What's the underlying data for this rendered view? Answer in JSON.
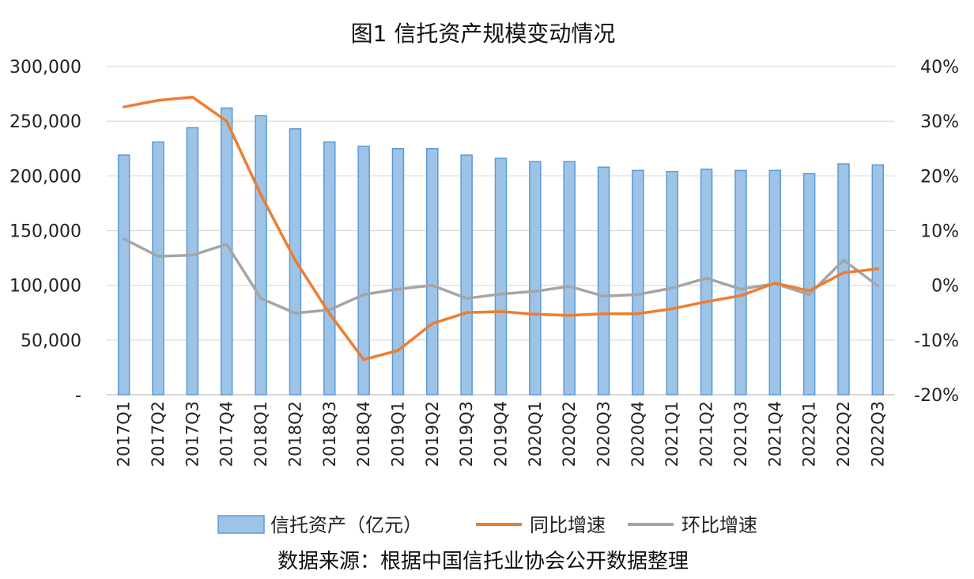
{
  "chart_data": {
    "type": "bar+line",
    "title": "图1 信托资产规模变动情况",
    "source": "数据来源：根据中国信托业协会公开数据整理",
    "categories": [
      "2017Q1",
      "2017Q2",
      "2017Q3",
      "2017Q4",
      "2018Q1",
      "2018Q2",
      "2018Q3",
      "2018Q4",
      "2019Q1",
      "2019Q2",
      "2019Q3",
      "2019Q4",
      "2020Q1",
      "2020Q2",
      "2020Q3",
      "2020Q4",
      "2021Q1",
      "2021Q2",
      "2021Q3",
      "2021Q4",
      "2022Q1",
      "2022Q2",
      "2022Q3"
    ],
    "left_axis": {
      "ylim": [
        0,
        300000
      ],
      "ticks": [
        0,
        50000,
        100000,
        150000,
        200000,
        250000,
        300000
      ],
      "tick_labels": [
        "-",
        "50,000",
        "100,000",
        "150,000",
        "200,000",
        "250,000",
        "300,000"
      ]
    },
    "right_axis": {
      "ylim": [
        -20,
        40
      ],
      "ticks": [
        -20,
        -10,
        0,
        10,
        20,
        30,
        40
      ],
      "tick_labels": [
        "-20%",
        "-10%",
        "0%",
        "10%",
        "20%",
        "30%",
        "40%"
      ]
    },
    "series": [
      {
        "name": "信托资产（亿元）",
        "type": "bar",
        "axis": "left",
        "color": "#9dc3e6",
        "values": [
          219000,
          231000,
          244000,
          262000,
          255000,
          243000,
          231000,
          227000,
          225000,
          225000,
          219000,
          216000,
          213000,
          213000,
          208000,
          205000,
          204000,
          206000,
          205000,
          205000,
          202000,
          211000,
          210000
        ]
      },
      {
        "name": "同比增速",
        "type": "line",
        "axis": "right",
        "color": "#ed7d31",
        "values": [
          32.6,
          33.8,
          34.4,
          30.0,
          16.5,
          4.6,
          -5.2,
          -13.6,
          -11.9,
          -7.0,
          -5.0,
          -4.8,
          -5.3,
          -5.5,
          -5.2,
          -5.2,
          -4.3,
          -3.0,
          -1.9,
          0.4,
          -1.0,
          2.3,
          3.0
        ]
      },
      {
        "name": "环比增速",
        "type": "line",
        "axis": "right",
        "color": "#a5a5a5",
        "values": [
          8.5,
          5.3,
          5.5,
          7.5,
          -2.4,
          -5.1,
          -4.5,
          -1.7,
          -0.7,
          0.0,
          -2.4,
          -1.6,
          -1.1,
          -0.2,
          -2.0,
          -1.7,
          -0.5,
          1.3,
          -0.7,
          0.3,
          -1.7,
          4.6,
          -0.1
        ]
      }
    ],
    "legend": {
      "position": "bottom",
      "entries": [
        "信托资产（亿元）",
        "同比增速",
        "环比增速"
      ]
    }
  }
}
